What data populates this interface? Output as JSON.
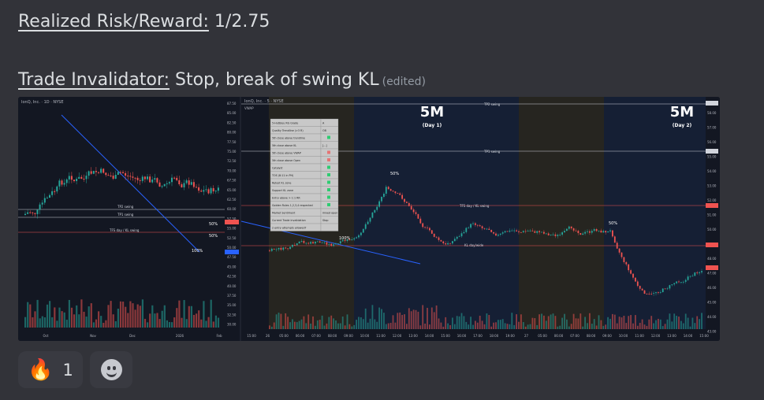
{
  "message": {
    "line1": {
      "label": "Realized Risk/Reward:",
      "value": " 1/2.75"
    },
    "line2": {
      "label": "Trade Invalidator:",
      "value": " Stop, break of swing KL",
      "edited": "(edited)"
    }
  },
  "chart_left": {
    "header": "IonQ, Inc. · 1D · NYSE",
    "prices": [
      "87.50",
      "85.00",
      "82.50",
      "80.00",
      "77.50",
      "75.00",
      "72.50",
      "70.00",
      "67.50",
      "65.00",
      "62.50",
      "60.00",
      "57.50",
      "55.00",
      "52.50",
      "50.00",
      "47.50",
      "45.00",
      "42.50",
      "40.00",
      "37.50",
      "35.00",
      "32.50",
      "30.00"
    ],
    "x_labels": [
      "Oct",
      "Nov",
      "Dec",
      "2026",
      "Feb"
    ],
    "annotations": {
      "tp2": "TP2 swing",
      "tp1": "TP1 swing",
      "tfs": "TFS day / KL swing",
      "pct50a": "50%",
      "pct50b": "50%",
      "pct100": "100%"
    }
  },
  "chart_right": {
    "header": "IonQ, Inc. · 5 · NYSE",
    "indicator": "VWAP",
    "day1_title": "5M",
    "day1_sub": "(Day 1)",
    "day2_title": "5M",
    "day2_sub": "(Day 2)",
    "table": [
      [
        "5-Hutbleu RG Grade",
        "A"
      ],
      [
        "Quality Trendline (>3 R)",
        "OB"
      ],
      [
        "5th close above trendline",
        ""
      ],
      [
        "5th close above KL",
        "[...]"
      ],
      [
        "5th close above VWAP",
        ""
      ],
      [
        "5th close above Open",
        ""
      ],
      [
        "Catalyst",
        ""
      ],
      [
        "TOS (8:11 in PH)",
        ""
      ],
      [
        "Retest KL zone",
        ""
      ],
      [
        "Support KL zone",
        ""
      ],
      [
        "Entry above > 1:1 RR",
        ""
      ],
      [
        "Golden Rules 1,2,3,4 respected",
        ""
      ],
      [
        "Market Sentiment",
        "mixed open"
      ],
      [
        "Current Trade invalidation",
        "Stop"
      ],
      [
        "2 entry attempts allowed?",
        ""
      ]
    ],
    "labels": {
      "tp2": "TP2 swing",
      "tp1": "TP1 swing",
      "tfs": "TFS day / KL swing",
      "kl": "KL day/wide",
      "pct100": "100%",
      "pct50a": "50%",
      "pct50b": "50%"
    },
    "prices": [
      "58.00",
      "57.00",
      "56.00",
      "55.00",
      "54.00",
      "53.00",
      "52.00",
      "51.00",
      "50.00",
      "49.00",
      "48.00",
      "47.00",
      "46.00",
      "45.00",
      "44.00",
      "43.00"
    ],
    "x_labels": [
      "15:00",
      "26",
      "05:00",
      "06:00",
      "07:00",
      "08:00",
      "09:00",
      "10:00",
      "11:00",
      "12:00",
      "13:00",
      "14:00",
      "15:00",
      "16:00",
      "17:00",
      "18:00",
      "19:00",
      "27",
      "05:00",
      "06:00",
      "07:00",
      "08:00",
      "09:00",
      "10:00",
      "11:00",
      "12:00",
      "13:00",
      "14:00",
      "15:00"
    ]
  },
  "reactions": [
    {
      "emoji": "🔥",
      "count": "1"
    }
  ],
  "colors": {
    "up": "#26a69a",
    "down": "#ef5350",
    "bg": "#131722"
  }
}
